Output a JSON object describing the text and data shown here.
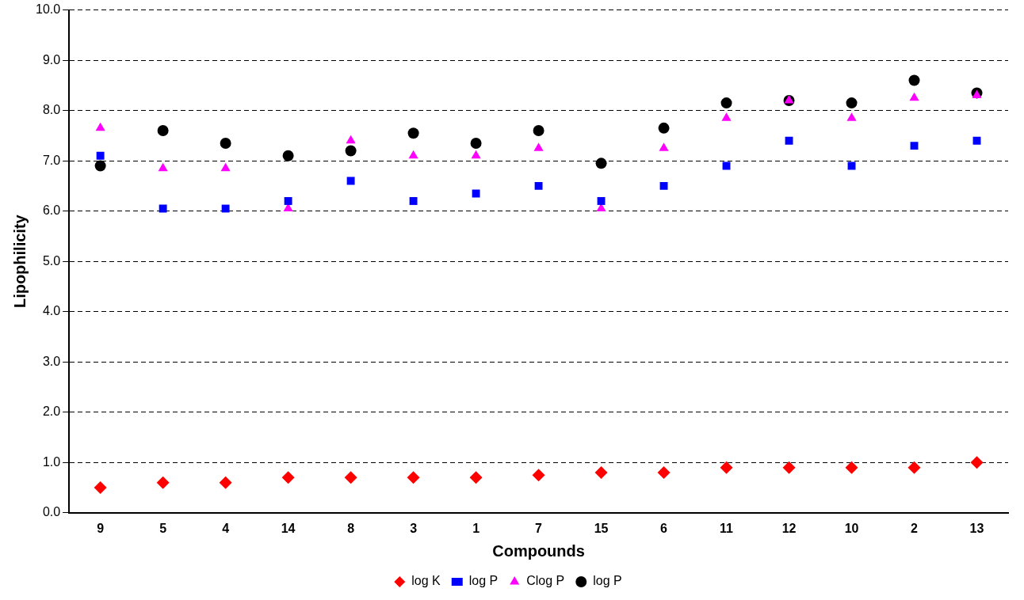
{
  "chart_data": {
    "type": "scatter",
    "xlabel": "Compounds",
    "ylabel": "Lipophilicity",
    "categories": [
      "9",
      "5",
      "4",
      "14",
      "8",
      "3",
      "1",
      "7",
      "15",
      "6",
      "11",
      "12",
      "10",
      "2",
      "13"
    ],
    "ylim": [
      0,
      10
    ],
    "yticks": [
      {
        "value": 0,
        "label": "0.0"
      },
      {
        "value": 1,
        "label": "1.0"
      },
      {
        "value": 2,
        "label": "2.0"
      },
      {
        "value": 3,
        "label": "3.0"
      },
      {
        "value": 4,
        "label": "4.0"
      },
      {
        "value": 5,
        "label": "5.0"
      },
      {
        "value": 6,
        "label": "6.0"
      },
      {
        "value": 7,
        "label": "7.0"
      },
      {
        "value": 8,
        "label": "8.0"
      },
      {
        "value": 9,
        "label": "9.0"
      },
      {
        "value": 10,
        "label": "10.0"
      }
    ],
    "grid": "y",
    "legend": "bottom",
    "series": [
      {
        "name": "log K",
        "color": "#ff0000",
        "marker": "diamond",
        "values": [
          0.5,
          0.6,
          0.6,
          0.7,
          0.7,
          0.7,
          0.7,
          0.75,
          0.8,
          0.8,
          0.9,
          0.9,
          0.9,
          0.9,
          1.0
        ]
      },
      {
        "name": "log P",
        "color": "#0000ff",
        "marker": "square",
        "values": [
          7.1,
          6.05,
          6.05,
          6.2,
          6.6,
          6.2,
          6.35,
          6.5,
          6.2,
          6.5,
          6.9,
          7.4,
          6.9,
          7.3,
          7.4
        ]
      },
      {
        "name": "Clog P",
        "color": "#ff00ff",
        "marker": "triangle",
        "values": [
          7.65,
          6.85,
          6.85,
          6.05,
          7.4,
          7.1,
          7.1,
          7.25,
          6.05,
          7.25,
          7.85,
          8.2,
          7.85,
          8.25,
          8.3
        ]
      },
      {
        "name": "log P",
        "color": "#000000",
        "marker": "circle",
        "values": [
          6.9,
          7.6,
          7.35,
          7.1,
          7.2,
          7.55,
          7.35,
          7.6,
          6.95,
          7.65,
          8.15,
          8.2,
          8.15,
          8.6,
          8.35
        ]
      }
    ]
  }
}
